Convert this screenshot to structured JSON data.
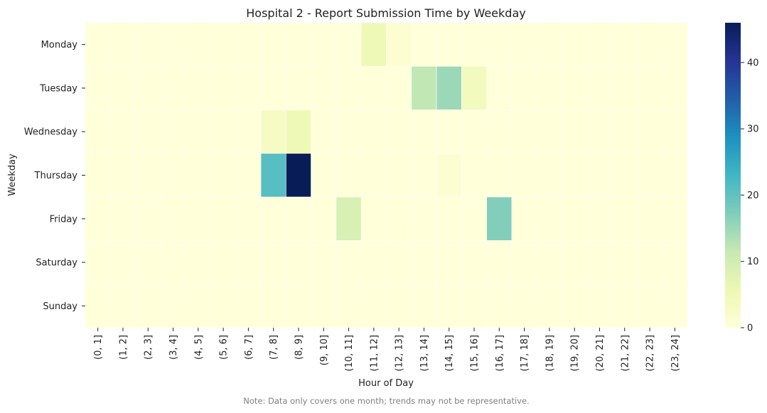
{
  "chart_data": {
    "type": "heatmap",
    "title": "Hospital 2 - Report Submission Time by Weekday",
    "xlabel": "Hour of Day",
    "ylabel": "Weekday",
    "x_categories": [
      "(0, 1]",
      "(1, 2]",
      "(2, 3]",
      "(3, 4]",
      "(4, 5]",
      "(5, 6]",
      "(6, 7]",
      "(7, 8]",
      "(8, 9]",
      "(9, 10]",
      "(10, 11]",
      "(11, 12]",
      "(12, 13]",
      "(13, 14]",
      "(14, 15]",
      "(15, 16]",
      "(16, 17]",
      "(17, 18]",
      "(18, 19]",
      "(19, 20]",
      "(20, 21]",
      "(21, 22]",
      "(22, 23]",
      "(23, 24]"
    ],
    "y_categories": [
      "Monday",
      "Tuesday",
      "Wednesday",
      "Thursday",
      "Friday",
      "Saturday",
      "Sunday"
    ],
    "values": [
      [
        0,
        0,
        0,
        0,
        0,
        0,
        0,
        0,
        0,
        0,
        0,
        5,
        1,
        0,
        0,
        0,
        0,
        0,
        0,
        0,
        0,
        0,
        0,
        0
      ],
      [
        0,
        0,
        0,
        0,
        0,
        0,
        0,
        0,
        0,
        0,
        0,
        0,
        0,
        12,
        15,
        4,
        0,
        0,
        0,
        0,
        0,
        0,
        0,
        0
      ],
      [
        0,
        0,
        0,
        0,
        0,
        0,
        0,
        3,
        5,
        0,
        0,
        0,
        0,
        0,
        0,
        0,
        0,
        0,
        0,
        0,
        0,
        0,
        0,
        0
      ],
      [
        0,
        0,
        0,
        0,
        0,
        0,
        0,
        21,
        46,
        0,
        0,
        0,
        0,
        0,
        1,
        0,
        0,
        0,
        0,
        0,
        0,
        0,
        0,
        0
      ],
      [
        0,
        0,
        0,
        0,
        0,
        0,
        0,
        0,
        0,
        0,
        9,
        0,
        0,
        0,
        0,
        0,
        17,
        0,
        0,
        0,
        0,
        0,
        0,
        0
      ],
      [
        0,
        0,
        0,
        0,
        0,
        0,
        0,
        0,
        0,
        0,
        0,
        0,
        0,
        0,
        0,
        0,
        0,
        0,
        0,
        0,
        0,
        0,
        0,
        0
      ],
      [
        0,
        0,
        0,
        0,
        0,
        0,
        0,
        0,
        0,
        0,
        0,
        0,
        0,
        0,
        0,
        0,
        0,
        0,
        0,
        0,
        0,
        0,
        0,
        0
      ]
    ],
    "colormap": "YlGnBu",
    "vmin": 0,
    "vmax": 46,
    "colorbar_ticks": [
      0,
      10,
      20,
      30,
      40
    ],
    "grid": true,
    "gridline_color": "#ffffff"
  },
  "note": "Note: Data only covers one month; trends may not be representative."
}
